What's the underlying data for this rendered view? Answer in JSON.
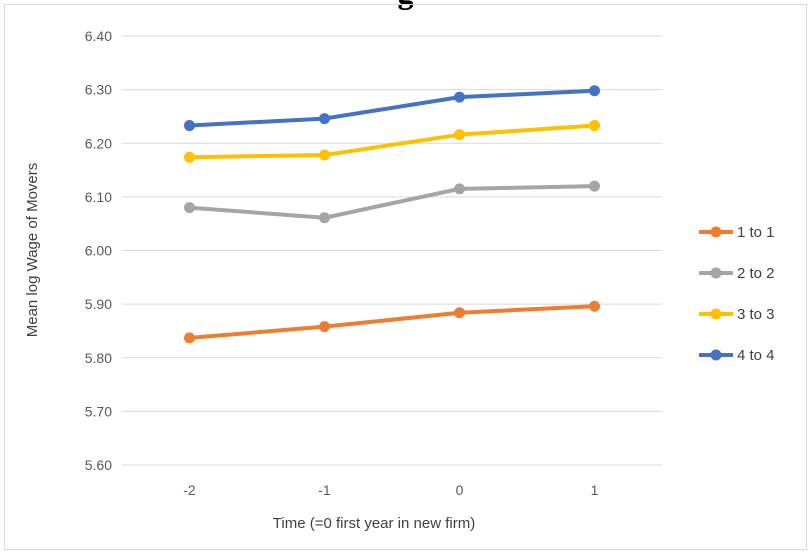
{
  "chart_data": {
    "type": "line",
    "title": "g",
    "xlabel": "Time (=0 first year in new firm)",
    "ylabel": "Mean log Wage of Movers",
    "categories": [
      "-2",
      "-1",
      "0",
      "1"
    ],
    "ylim": [
      5.6,
      6.4
    ],
    "yticks": [
      "6.40",
      "6.30",
      "6.20",
      "6.10",
      "6.00",
      "5.90",
      "5.80",
      "5.70",
      "5.60"
    ],
    "grid": true,
    "legend_position": "right",
    "series": [
      {
        "name": "1 to 1",
        "color": "#ED7D31",
        "values": [
          5.837,
          5.858,
          5.884,
          5.896
        ]
      },
      {
        "name": "2 to 2",
        "color": "#A5A5A5",
        "values": [
          6.08,
          6.061,
          6.115,
          6.12
        ]
      },
      {
        "name": "3 to 3",
        "color": "#FFC000",
        "values": [
          6.174,
          6.178,
          6.216,
          6.233
        ]
      },
      {
        "name": "4 to 4",
        "color": "#4472C4",
        "values": [
          6.233,
          6.246,
          6.286,
          6.298
        ]
      }
    ]
  }
}
